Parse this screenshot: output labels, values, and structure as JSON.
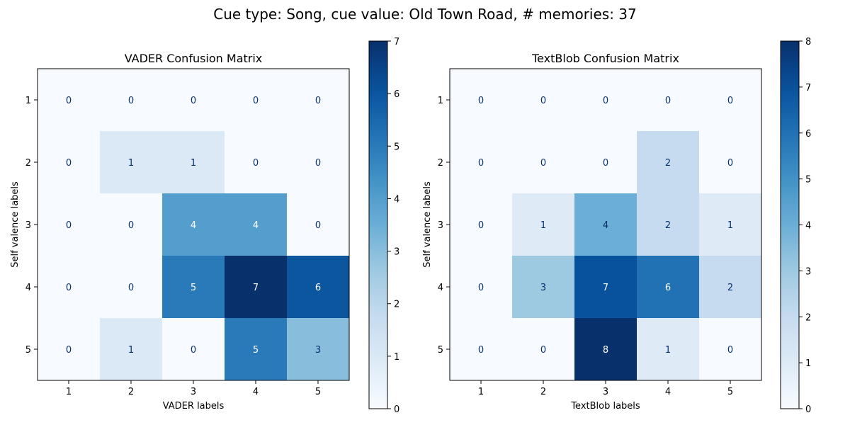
{
  "figure": {
    "suptitle": "Cue type: Song, cue value: Old Town Road, # memories: 37"
  },
  "chart_data": [
    {
      "type": "heatmap",
      "title": "VADER Confusion Matrix",
      "xlabel": "VADER labels",
      "ylabel": "Self valence labels",
      "x_categories": [
        "1",
        "2",
        "3",
        "4",
        "5"
      ],
      "y_categories": [
        "1",
        "2",
        "3",
        "4",
        "5"
      ],
      "values": [
        [
          0,
          0,
          0,
          0,
          0
        ],
        [
          0,
          1,
          1,
          0,
          0
        ],
        [
          0,
          0,
          4,
          4,
          0
        ],
        [
          0,
          0,
          5,
          7,
          6
        ],
        [
          0,
          1,
          0,
          5,
          3
        ]
      ],
      "colormap": "Blues",
      "colorbar": {
        "min": 0,
        "max": 7,
        "ticks": [
          0,
          1,
          2,
          3,
          4,
          5,
          6,
          7
        ]
      },
      "grid": false
    },
    {
      "type": "heatmap",
      "title": "TextBlob Confusion Matrix",
      "xlabel": "TextBlob labels",
      "ylabel": "Self valence labels",
      "x_categories": [
        "1",
        "2",
        "3",
        "4",
        "5"
      ],
      "y_categories": [
        "1",
        "2",
        "3",
        "4",
        "5"
      ],
      "values": [
        [
          0,
          0,
          0,
          0,
          0
        ],
        [
          0,
          0,
          0,
          2,
          0
        ],
        [
          0,
          1,
          4,
          2,
          1
        ],
        [
          0,
          3,
          7,
          6,
          2
        ],
        [
          0,
          0,
          8,
          1,
          0
        ]
      ],
      "colormap": "Blues",
      "colorbar": {
        "min": 0,
        "max": 8,
        "ticks": [
          0,
          1,
          2,
          3,
          4,
          5,
          6,
          7,
          8
        ]
      },
      "grid": false
    }
  ]
}
